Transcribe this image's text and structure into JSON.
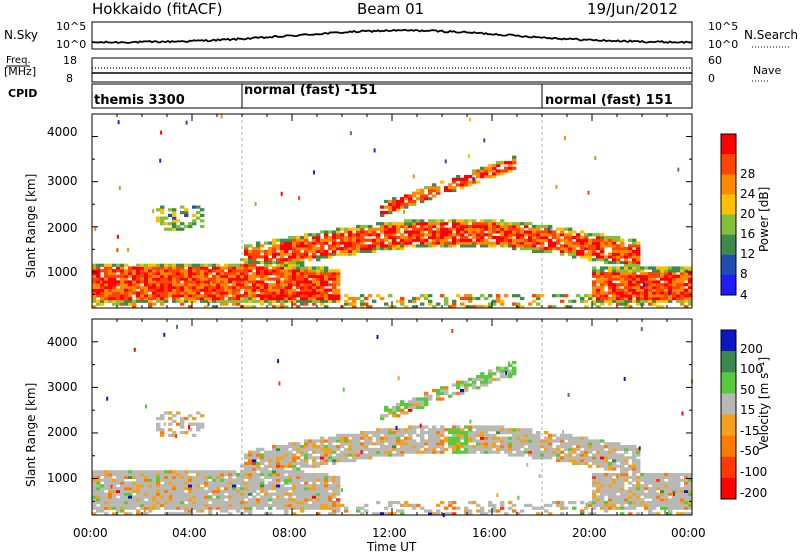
{
  "header": {
    "station": "Hokkaido (fitACF)",
    "beam": "Beam 01",
    "date": "19/Jun/2012"
  },
  "small_panels": {
    "nsky_label": "N.Sky",
    "nsearch_label": "N.Search",
    "nsky_ticks": [
      "10^5",
      "10^0"
    ],
    "nsearch_ticks": [
      "10^5",
      "10^0"
    ],
    "freq_label_top": "Freq.",
    "freq_label_unit": "[MHz]",
    "freq_ticks": [
      "18",
      "8"
    ],
    "nave_label": "Nave",
    "nave_ticks": [
      "60",
      "0"
    ],
    "cpid_label": "CPID",
    "cpid_segments": [
      "themis 3300",
      "normal (fast) -151",
      "normal (fast) 151"
    ]
  },
  "colors": {
    "power_scale": [
      "#1c1cff",
      "#1f4fb5",
      "#3d8a4f",
      "#7fc23a",
      "#ffc000",
      "#ff8a00",
      "#ff4400",
      "#ff0000"
    ],
    "velocity_scale": [
      "#0c16c8",
      "#3a8a4e",
      "#58c83c",
      "#b8b8b4",
      "#f4a21c",
      "#ff7a00",
      "#ff3a00",
      "#ff0000"
    ]
  },
  "chart_data": [
    {
      "type": "heatmap",
      "panel": "power",
      "ylabel": "Slant Range [km]",
      "ylim": [
        200,
        4500
      ],
      "yticks": [
        "4000",
        "3000",
        "2000",
        "1000"
      ],
      "xlim_hours": [
        0,
        24
      ],
      "xticks": [
        "00:00",
        "04:00",
        "08:00",
        "12:00",
        "16:00",
        "20:00",
        "00:00"
      ],
      "colorbar": {
        "label": "Power [dB]",
        "ticks": [
          "28",
          "24",
          "20",
          "16",
          "12",
          "8",
          "4"
        ]
      }
    },
    {
      "type": "heatmap",
      "panel": "velocity",
      "ylabel": "Slant Range [km]",
      "xlabel": "Time UT",
      "ylim": [
        200,
        4500
      ],
      "yticks": [
        "4000",
        "3000",
        "2000",
        "1000"
      ],
      "xlim_hours": [
        0,
        24
      ],
      "xticks": [
        "00:00",
        "04:00",
        "08:00",
        "12:00",
        "16:00",
        "20:00",
        "00:00"
      ],
      "colorbar": {
        "label": "Velocity [m s⁻¹]",
        "ticks": [
          "200",
          "100",
          "50",
          "15",
          "-15",
          "-50",
          "-100",
          "-200"
        ]
      }
    }
  ]
}
